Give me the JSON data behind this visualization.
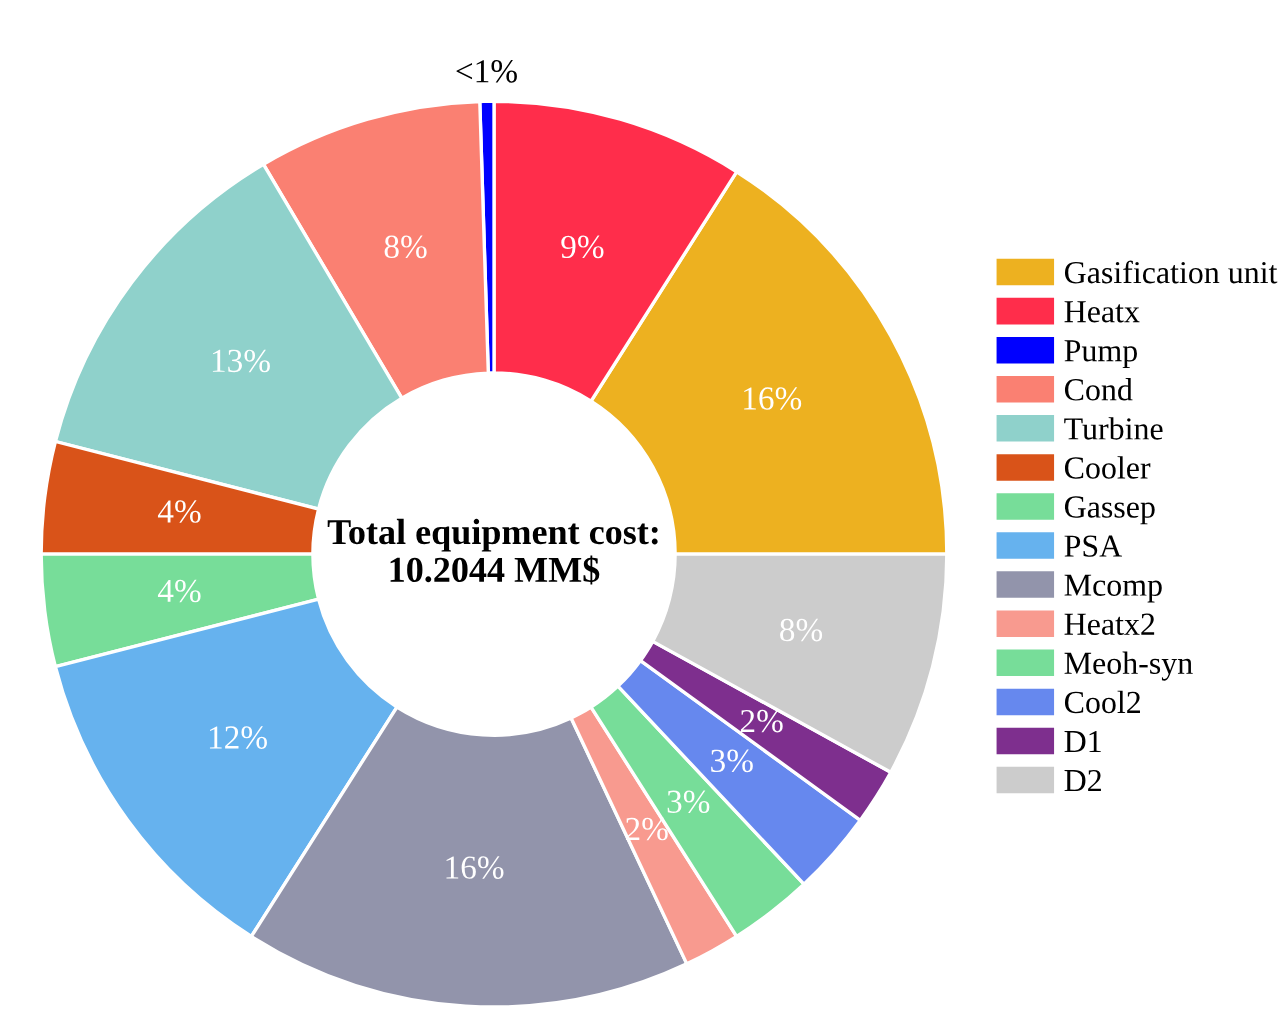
{
  "chart_data": {
    "type": "donut",
    "categories": [
      "Gasification unit",
      "Heatx",
      "Pump",
      "Cond",
      "Turbine",
      "Cooler",
      "Gassep",
      "PSA",
      "Mcomp",
      "Heatx2",
      "Meoh-syn",
      "Cool2",
      "D1",
      "D2"
    ],
    "values": [
      16,
      9,
      0.5,
      8,
      12.5,
      4,
      4,
      12,
      16,
      2,
      3,
      3,
      2,
      8
    ],
    "value_labels": [
      "16%",
      "9%",
      "<1%",
      "8%",
      "13%",
      "4%",
      "4%",
      "12%",
      "16%",
      "2%",
      "3%",
      "3%",
      "2%",
      "8%"
    ],
    "colors": [
      "#edb120",
      "#ff2d4b",
      "#0000ff",
      "#fa8072",
      "#8fd1cb",
      "#d95319",
      "#77dd99",
      "#66b2ee",
      "#9294ab",
      "#f89a8f",
      "#77dd99",
      "#6688ee",
      "#7e2f8e",
      "#cccccc"
    ],
    "annotations": [
      "Total equipment cost:\n10.2044 MM$"
    ],
    "legend": "right"
  }
}
